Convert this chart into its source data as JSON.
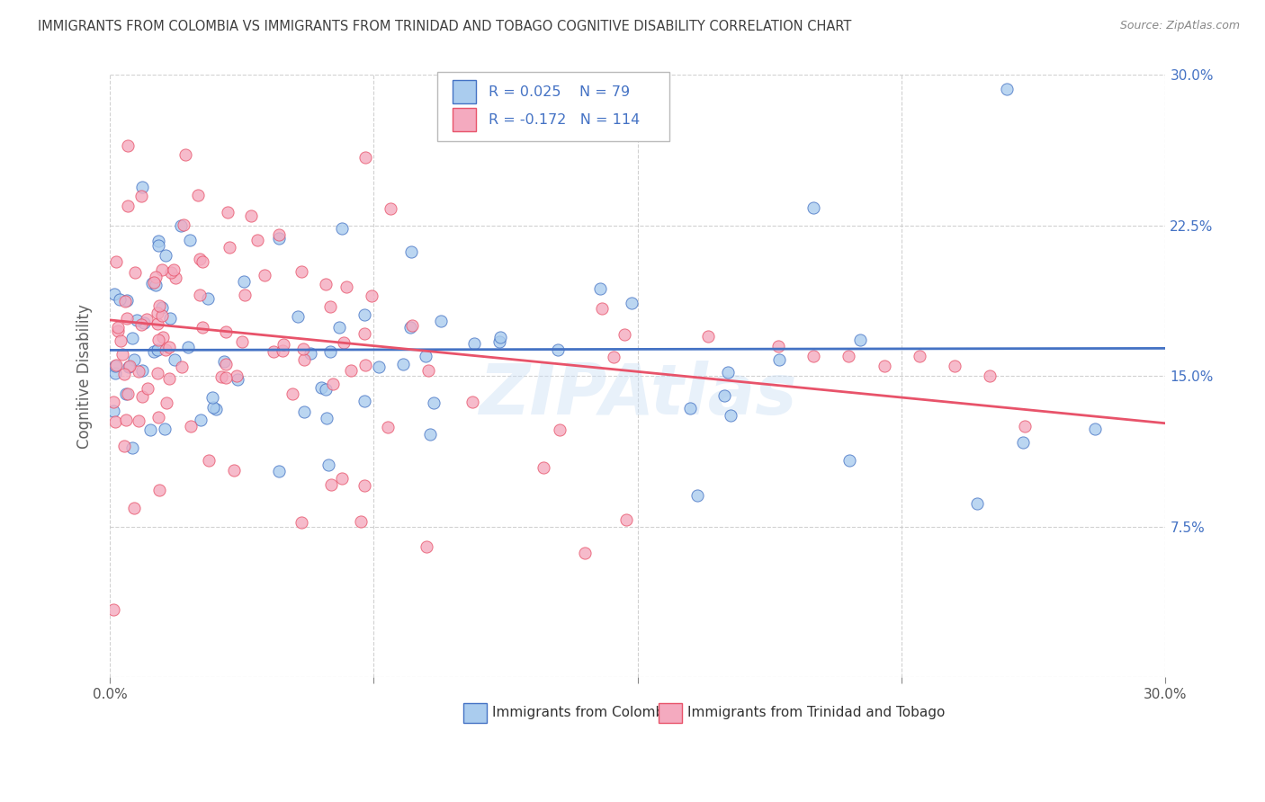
{
  "title": "IMMIGRANTS FROM COLOMBIA VS IMMIGRANTS FROM TRINIDAD AND TOBAGO COGNITIVE DISABILITY CORRELATION CHART",
  "source": "Source: ZipAtlas.com",
  "ylabel": "Cognitive Disability",
  "legend_label1": "Immigrants from Colombia",
  "legend_label2": "Immigrants from Trinidad and Tobago",
  "R1": 0.025,
  "N1": 79,
  "R2": -0.172,
  "N2": 114,
  "color1": "#aaccee",
  "color2": "#f4aabf",
  "line_color1": "#4472c4",
  "line_color2": "#e8536a",
  "xlim": [
    0.0,
    0.3
  ],
  "ylim": [
    0.0,
    0.3
  ],
  "watermark": "ZIPAtlas",
  "background_color": "#ffffff",
  "grid_color": "#cccccc",
  "title_color": "#404040",
  "axis_label_color": "#606060",
  "right_tick_color": "#4472c4"
}
